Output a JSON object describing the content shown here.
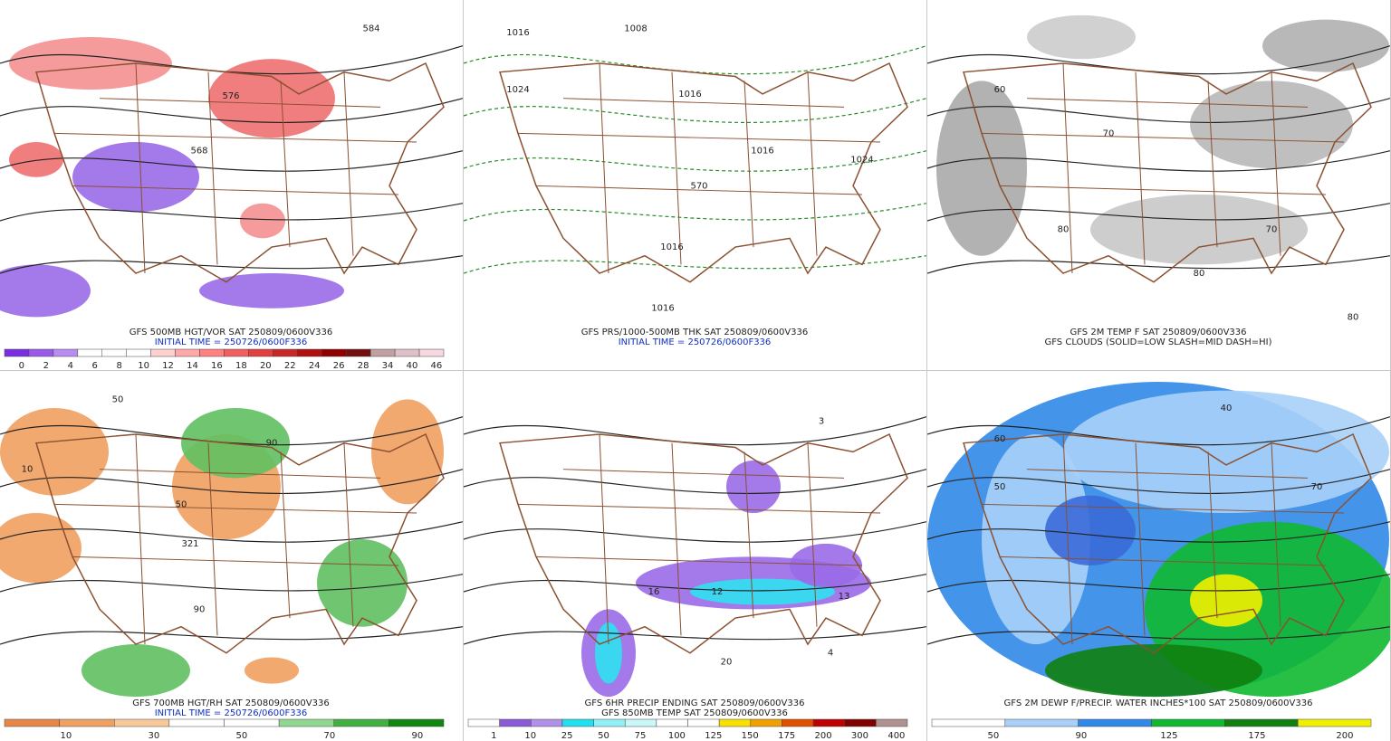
{
  "panels": [
    {
      "captions": [
        "GFS 500MB HGT/VOR SAT 250809/0600V336",
        "INITIAL TIME = 250726/0600F336"
      ],
      "map_labels": [
        "584",
        "576",
        "568"
      ],
      "colorbar": {
        "labels": [
          "0",
          "2",
          "4",
          "6",
          "8",
          "10",
          "12",
          "14",
          "16",
          "18",
          "20",
          "22",
          "24",
          "26",
          "28",
          "34",
          "40",
          "46"
        ],
        "colors": [
          "#7a2ee0",
          "#9a5ae8",
          "#b88cf0",
          "#ffffff",
          "#ffffff",
          "#ffffff",
          "#ffd0d0",
          "#ffa8a8",
          "#ff8080",
          "#f06060",
          "#e04040",
          "#c82828",
          "#b01010",
          "#900000",
          "#701010",
          "#c0a0a0",
          "#e0c0c8",
          "#f8d8e0"
        ]
      }
    },
    {
      "captions": [
        "GFS PRS/1000-500MB THK SAT 250809/0600V336",
        "INITIAL TIME = 250726/0600F336"
      ],
      "map_labels": [
        "1016",
        "1024",
        "1008",
        "1016",
        "1016",
        "1024",
        "1016",
        "1016",
        "570"
      ]
    },
    {
      "captions": [
        "GFS 2M TEMP F SAT 250809/0600V336",
        "GFS CLOUDS (SOLID=LOW SLASH=MID DASH=HI)"
      ],
      "map_labels": [
        "60",
        "70",
        "80",
        "80",
        "70",
        "80"
      ]
    },
    {
      "captions": [
        "GFS 700MB HGT/RH SAT 250809/0600V336",
        "INITIAL TIME = 250726/0600F336"
      ],
      "map_labels": [
        "50",
        "10",
        "90",
        "50",
        "321",
        "90"
      ],
      "colorbar": {
        "labels": [
          "10",
          "30",
          "50",
          "70",
          "90"
        ],
        "colors": [
          "#e88848",
          "#f0a060",
          "#f8c898",
          "#ffffff",
          "#ffffff",
          "#90d890",
          "#40b040",
          "#108810"
        ]
      }
    },
    {
      "captions": [
        "GFS 6HR PRECIP ENDING SAT 250809/0600V336",
        "GFS 850MB TEMP SAT 250809/0600V336"
      ],
      "map_labels": [
        "3",
        "16",
        "12",
        "13",
        "20",
        "4"
      ],
      "colorbar": {
        "labels": [
          "1",
          "10",
          "25",
          "50",
          "75",
          "100",
          "125",
          "150",
          "175",
          "200",
          "300",
          "400"
        ],
        "colors": [
          "#ffffff",
          "#8a5ad8",
          "#b090e8",
          "#20e0f0",
          "#90f0f8",
          "#c8f8f8",
          "#ffffff",
          "#ffffff",
          "#f8e000",
          "#f0a000",
          "#e05000",
          "#c00000",
          "#800000",
          "#b09090"
        ]
      }
    },
    {
      "captions": [
        "GFS 2M DEWP F/PRECIP. WATER INCHES*100 SAT 250809/0600V336"
      ],
      "map_labels": [
        "60",
        "50",
        "40",
        "70"
      ],
      "colorbar": {
        "labels": [
          "50",
          "90",
          "125",
          "175",
          "200"
        ],
        "colors": [
          "#ffffff",
          "#a8d0f8",
          "#3088e8",
          "#10b830",
          "#108010",
          "#f0f000"
        ]
      }
    }
  ]
}
